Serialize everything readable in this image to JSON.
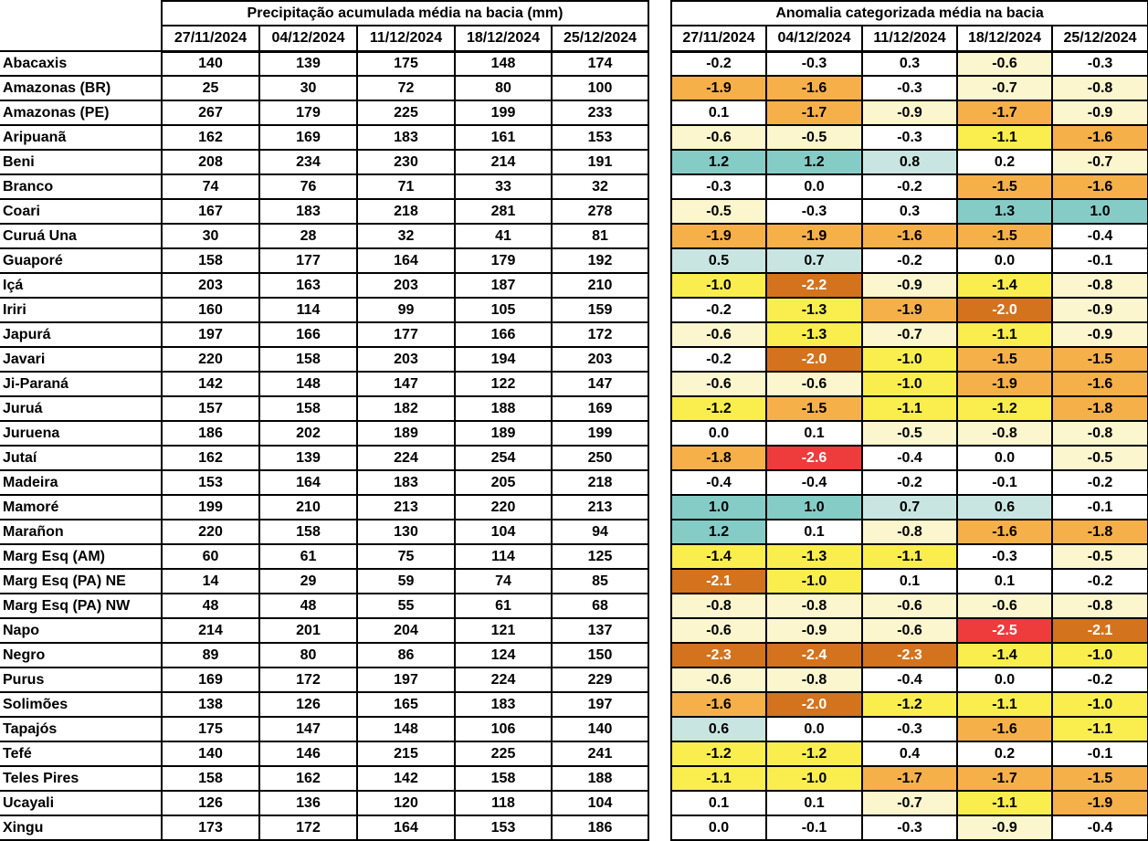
{
  "chart_data": {
    "type": "table",
    "left_title": "Precipitação acumulada média na bacia (mm)",
    "right_title": "Anomalia categorizada média na bacia",
    "dates": [
      "27/11/2024",
      "04/12/2024",
      "11/12/2024",
      "18/12/2024",
      "25/12/2024"
    ],
    "rows": [
      {
        "basin": "Abacaxis",
        "precip": [
          140,
          139,
          175,
          148,
          174
        ],
        "anomaly": [
          -0.2,
          -0.3,
          0.3,
          -0.6,
          -0.3
        ]
      },
      {
        "basin": "Amazonas (BR)",
        "precip": [
          25,
          30,
          72,
          80,
          100
        ],
        "anomaly": [
          -1.9,
          -1.6,
          -0.3,
          -0.7,
          -0.8
        ]
      },
      {
        "basin": "Amazonas (PE)",
        "precip": [
          267,
          179,
          225,
          199,
          233
        ],
        "anomaly": [
          0.1,
          -1.7,
          -0.9,
          -1.7,
          -0.9
        ]
      },
      {
        "basin": "Aripuanã",
        "precip": [
          162,
          169,
          183,
          161,
          153
        ],
        "anomaly": [
          -0.6,
          -0.5,
          -0.3,
          -1.1,
          -1.6
        ]
      },
      {
        "basin": "Beni",
        "precip": [
          208,
          234,
          230,
          214,
          191
        ],
        "anomaly": [
          1.2,
          1.2,
          0.8,
          0.2,
          -0.7
        ]
      },
      {
        "basin": "Branco",
        "precip": [
          74,
          76,
          71,
          33,
          32
        ],
        "anomaly": [
          -0.3,
          0.0,
          -0.2,
          -1.5,
          -1.6
        ]
      },
      {
        "basin": "Coari",
        "precip": [
          167,
          183,
          218,
          281,
          278
        ],
        "anomaly": [
          -0.5,
          -0.3,
          0.3,
          1.3,
          1.0
        ]
      },
      {
        "basin": "Curuá Una",
        "precip": [
          30,
          28,
          32,
          41,
          81
        ],
        "anomaly": [
          -1.9,
          -1.9,
          -1.6,
          -1.5,
          -0.4
        ]
      },
      {
        "basin": "Guaporé",
        "precip": [
          158,
          177,
          164,
          179,
          192
        ],
        "anomaly": [
          0.5,
          0.7,
          -0.2,
          0.0,
          -0.1
        ]
      },
      {
        "basin": "Içá",
        "precip": [
          203,
          163,
          203,
          187,
          210
        ],
        "anomaly": [
          -1.0,
          -2.2,
          -0.9,
          -1.4,
          -0.8
        ]
      },
      {
        "basin": "Iriri",
        "precip": [
          160,
          114,
          99,
          105,
          159
        ],
        "anomaly": [
          -0.2,
          -1.3,
          -1.9,
          -2.0,
          -0.9
        ]
      },
      {
        "basin": "Japurá",
        "precip": [
          197,
          166,
          177,
          166,
          172
        ],
        "anomaly": [
          -0.6,
          -1.3,
          -0.7,
          -1.1,
          -0.9
        ]
      },
      {
        "basin": "Javari",
        "precip": [
          220,
          158,
          203,
          194,
          203
        ],
        "anomaly": [
          -0.2,
          -2.0,
          -1.0,
          -1.5,
          -1.5
        ]
      },
      {
        "basin": "Ji-Paraná",
        "precip": [
          142,
          148,
          147,
          122,
          147
        ],
        "anomaly": [
          -0.6,
          -0.6,
          -1.0,
          -1.9,
          -1.6
        ]
      },
      {
        "basin": "Juruá",
        "precip": [
          157,
          158,
          182,
          188,
          169
        ],
        "anomaly": [
          -1.2,
          -1.5,
          -1.1,
          -1.2,
          -1.8
        ]
      },
      {
        "basin": "Juruena",
        "precip": [
          186,
          202,
          189,
          189,
          199
        ],
        "anomaly": [
          0.0,
          0.1,
          -0.5,
          -0.8,
          -0.8
        ]
      },
      {
        "basin": "Jutaí",
        "precip": [
          162,
          139,
          224,
          254,
          250
        ],
        "anomaly": [
          -1.8,
          -2.6,
          -0.4,
          0.0,
          -0.5
        ]
      },
      {
        "basin": "Madeira",
        "precip": [
          153,
          164,
          183,
          205,
          218
        ],
        "anomaly": [
          -0.4,
          -0.4,
          -0.2,
          -0.1,
          -0.2
        ]
      },
      {
        "basin": "Mamoré",
        "precip": [
          199,
          210,
          213,
          220,
          213
        ],
        "anomaly": [
          1.0,
          1.0,
          0.7,
          0.6,
          -0.1
        ]
      },
      {
        "basin": "Marañon",
        "precip": [
          220,
          158,
          130,
          104,
          94
        ],
        "anomaly": [
          1.2,
          0.1,
          -0.8,
          -1.6,
          -1.8
        ]
      },
      {
        "basin": "Marg Esq (AM)",
        "precip": [
          60,
          61,
          75,
          114,
          125
        ],
        "anomaly": [
          -1.4,
          -1.3,
          -1.1,
          -0.3,
          -0.5
        ]
      },
      {
        "basin": "Marg Esq (PA) NE",
        "precip": [
          14,
          29,
          59,
          74,
          85
        ],
        "anomaly": [
          -2.1,
          -1.0,
          0.1,
          0.1,
          -0.2
        ]
      },
      {
        "basin": "Marg Esq (PA) NW",
        "precip": [
          48,
          48,
          55,
          61,
          68
        ],
        "anomaly": [
          -0.8,
          -0.8,
          -0.6,
          -0.6,
          -0.8
        ]
      },
      {
        "basin": "Napo",
        "precip": [
          214,
          201,
          204,
          121,
          137
        ],
        "anomaly": [
          -0.6,
          -0.9,
          -0.6,
          -2.5,
          -2.1
        ]
      },
      {
        "basin": "Negro",
        "precip": [
          89,
          80,
          86,
          124,
          150
        ],
        "anomaly": [
          -2.3,
          -2.4,
          -2.3,
          -1.4,
          -1.0
        ]
      },
      {
        "basin": "Purus",
        "precip": [
          169,
          172,
          197,
          224,
          229
        ],
        "anomaly": [
          -0.6,
          -0.8,
          -0.4,
          0.0,
          -0.2
        ]
      },
      {
        "basin": "Solimões",
        "precip": [
          138,
          126,
          165,
          183,
          197
        ],
        "anomaly": [
          -1.6,
          -2.0,
          -1.2,
          -1.1,
          -1.0
        ]
      },
      {
        "basin": "Tapajós",
        "precip": [
          175,
          147,
          148,
          106,
          140
        ],
        "anomaly": [
          0.6,
          0.0,
          -0.3,
          -1.6,
          -1.1
        ]
      },
      {
        "basin": "Tefé",
        "precip": [
          140,
          146,
          215,
          225,
          241
        ],
        "anomaly": [
          -1.2,
          -1.2,
          0.4,
          0.2,
          -0.1
        ]
      },
      {
        "basin": "Teles Pires",
        "precip": [
          158,
          162,
          142,
          158,
          188
        ],
        "anomaly": [
          -1.1,
          -1.0,
          -1.7,
          -1.7,
          -1.5
        ]
      },
      {
        "basin": "Ucayali",
        "precip": [
          126,
          136,
          120,
          118,
          104
        ],
        "anomaly": [
          0.1,
          0.1,
          -0.7,
          -1.1,
          -1.9
        ]
      },
      {
        "basin": "Xingu",
        "precip": [
          173,
          172,
          164,
          153,
          186
        ],
        "anomaly": [
          0.0,
          -0.1,
          -0.3,
          -0.9,
          -0.4
        ]
      }
    ],
    "anomaly_color_scale": [
      {
        "min": 1.0,
        "color": "#85CCC7",
        "text": "#000000"
      },
      {
        "min": 0.5,
        "color": "#C8E5E2",
        "text": "#000000"
      },
      {
        "min": -0.45,
        "color": "#FFFFFF",
        "text": "#000000"
      },
      {
        "min": -0.95,
        "color": "#FBF6CD",
        "text": "#000000"
      },
      {
        "min": -1.45,
        "color": "#F9EE4E",
        "text": "#000000"
      },
      {
        "min": -1.95,
        "color": "#F6B04A",
        "text": "#000000"
      },
      {
        "min": -2.45,
        "color": "#D3731E",
        "text": "#FFFFFF"
      },
      {
        "min": -999,
        "color": "#EE3B3C",
        "text": "#FFFFFF"
      }
    ],
    "border_color": "#000000"
  }
}
